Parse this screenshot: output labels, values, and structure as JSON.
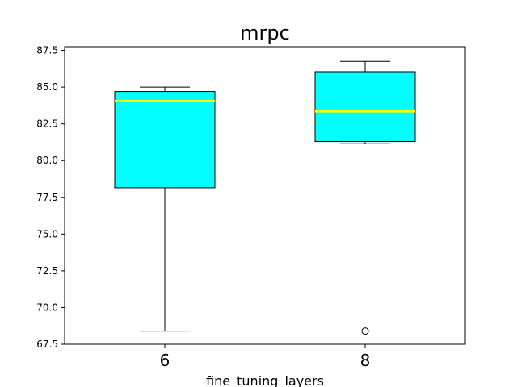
{
  "chart_data": {
    "type": "box",
    "title": "mrpc",
    "xlabel": "fine_tuning_layers",
    "ylabel": "",
    "categories": [
      "6",
      "8"
    ],
    "ylim": [
      67.5,
      87.75
    ],
    "yticks": [
      67.5,
      70.0,
      72.5,
      75.0,
      77.5,
      80.0,
      82.5,
      85.0,
      87.5
    ],
    "ytick_labels": [
      "67.5",
      "70.0",
      "72.5",
      "75.0",
      "77.5",
      "80.0",
      "82.5",
      "85.0",
      "87.5"
    ],
    "boxes": [
      {
        "category": "6",
        "whisker_low": 68.4,
        "q1": 78.15,
        "median": 84.05,
        "q3": 84.7,
        "whisker_high": 85.0,
        "outliers": []
      },
      {
        "category": "8",
        "whisker_low": 81.15,
        "q1": 81.3,
        "median": 83.35,
        "q3": 86.05,
        "whisker_high": 86.75,
        "outliers": [
          68.4
        ]
      }
    ],
    "grid": false,
    "colors": {
      "box_fill": "#00ffff",
      "median": "#ffff00",
      "edge": "#000000"
    }
  }
}
